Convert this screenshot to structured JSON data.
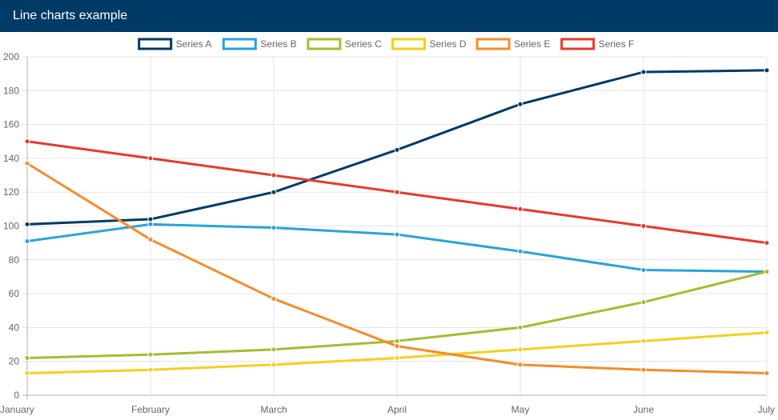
{
  "header": {
    "title": "Line charts example"
  },
  "chart_data": {
    "type": "line",
    "categories": [
      "January",
      "February",
      "March",
      "April",
      "May",
      "June",
      "July"
    ],
    "ylim": [
      0,
      200
    ],
    "yticks": [
      0,
      20,
      40,
      60,
      80,
      100,
      120,
      140,
      160,
      180,
      200
    ],
    "grid": true,
    "legend_position": "top",
    "series": [
      {
        "name": "Series A",
        "color": "#003a66",
        "values": [
          101,
          104,
          120,
          145,
          172,
          191,
          192
        ]
      },
      {
        "name": "Series B",
        "color": "#2aa3dc",
        "values": [
          91,
          101,
          99,
          95,
          85,
          74,
          73
        ]
      },
      {
        "name": "Series C",
        "color": "#a5bd2f",
        "values": [
          22,
          24,
          27,
          32,
          40,
          55,
          73
        ]
      },
      {
        "name": "Series D",
        "color": "#f5d01d",
        "values": [
          13,
          15,
          18,
          22,
          27,
          32,
          37
        ]
      },
      {
        "name": "Series E",
        "color": "#f78b28",
        "values": [
          137,
          92,
          57,
          29,
          18,
          15,
          13
        ]
      },
      {
        "name": "Series F",
        "color": "#e8392a",
        "values": [
          150,
          140,
          130,
          120,
          110,
          100,
          90
        ]
      }
    ]
  }
}
